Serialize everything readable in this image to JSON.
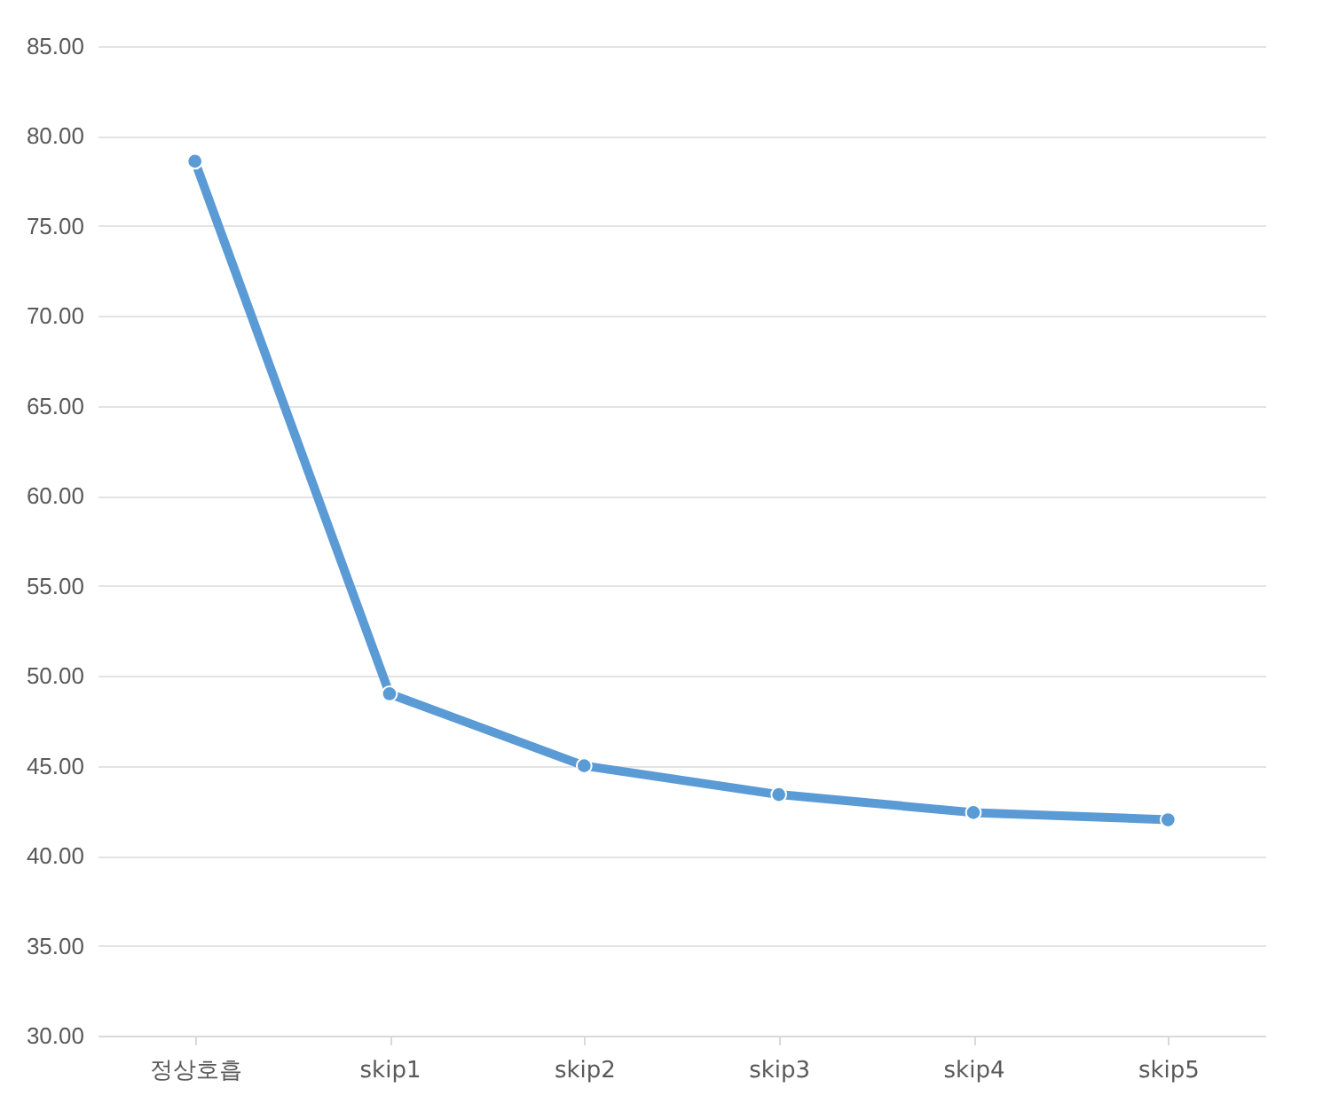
{
  "chart_data": {
    "type": "line",
    "categories": [
      "정상호흡",
      "skip1",
      "skip2",
      "skip3",
      "skip4",
      "skip5"
    ],
    "series": [
      {
        "color": "#5b9bd5",
        "values": [
          78.6,
          49.0,
          45.0,
          43.4,
          42.4,
          42.0
        ]
      }
    ],
    "ylim": [
      30,
      85
    ],
    "yticks": [
      {
        "value": 30,
        "label": "30.00"
      },
      {
        "value": 35,
        "label": "35.00"
      },
      {
        "value": 40,
        "label": "40.00"
      },
      {
        "value": 45,
        "label": "45.00"
      },
      {
        "value": 50,
        "label": "50.00"
      },
      {
        "value": 55,
        "label": "55.00"
      },
      {
        "value": 60,
        "label": "60.00"
      },
      {
        "value": 65,
        "label": "65.00"
      },
      {
        "value": 70,
        "label": "70.00"
      },
      {
        "value": 75,
        "label": "75.00"
      },
      {
        "value": 80,
        "label": "80.00"
      },
      {
        "value": 85,
        "label": "85.00"
      }
    ],
    "grid": "y",
    "marker": "circle",
    "line_style": "solid",
    "legend": false
  }
}
